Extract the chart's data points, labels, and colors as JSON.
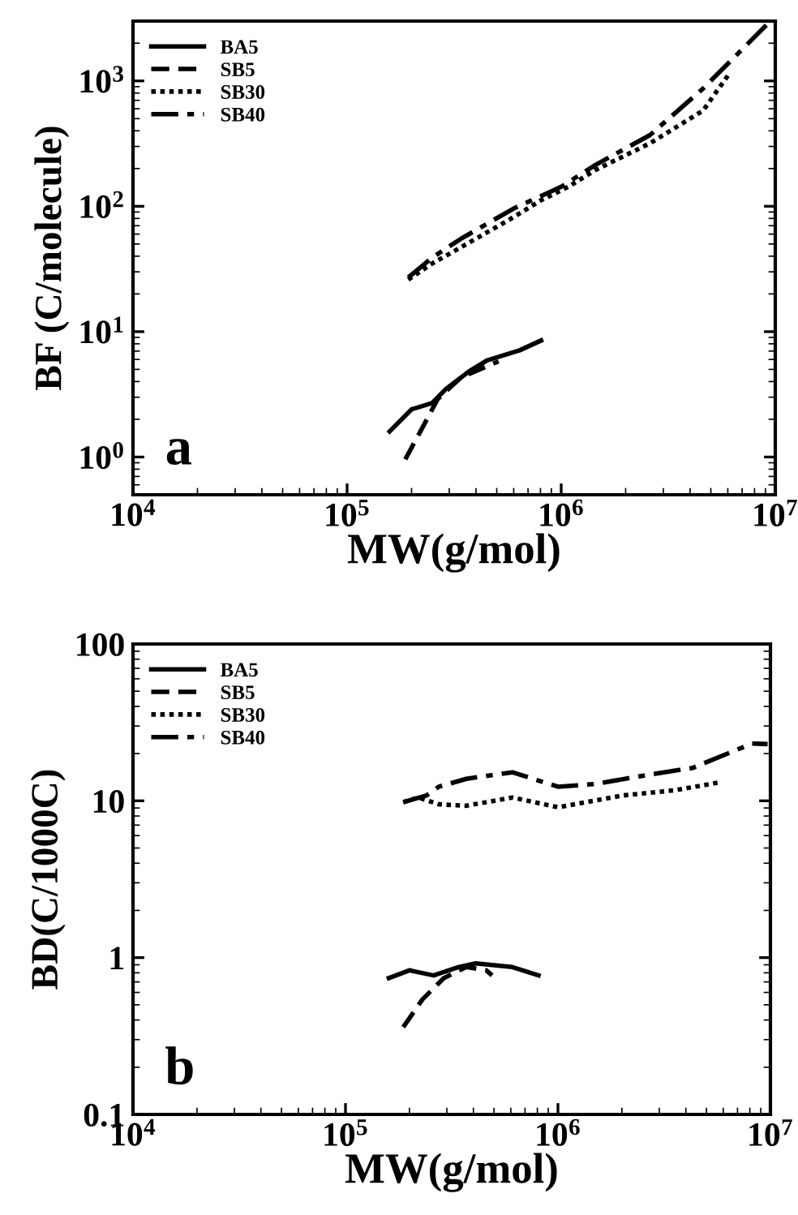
{
  "chart_data": [
    {
      "type": "line",
      "xlabel": "MW(g/mol)",
      "ylabel": "BF (C/molecule)",
      "log": "xy",
      "legend": "top left",
      "annotations": [
        "a"
      ],
      "xlim": [
        10000,
        10000000
      ],
      "xticks": [
        {
          "value": 10000,
          "label": "10$^{4}$"
        },
        {
          "value": 100000,
          "label": "10$^{5}$"
        },
        {
          "value": 1000000,
          "label": "10$^{6}$"
        },
        {
          "value": 10000000,
          "label": "10$^{7}$"
        }
      ],
      "ylim": [
        0.5,
        3000
      ],
      "yticks": [
        {
          "value": 1,
          "label": "10$^{0}$"
        },
        {
          "value": 10,
          "label": "10$^{1}$"
        },
        {
          "value": 100,
          "label": "10$^{2}$"
        },
        {
          "value": 1000,
          "label": "10$^{3}$"
        }
      ],
      "series": [
        {
          "name": "BA5",
          "color": "#000000",
          "line_style": "solid",
          "x": [
            158000,
            200000,
            250000,
            290000,
            370000,
            450000,
            640000,
            806000
          ],
          "values": [
            1.6,
            2.4,
            2.7,
            3.5,
            4.8,
            5.9,
            7.1,
            8.5
          ]
        },
        {
          "name": "SB5",
          "color": "#000000",
          "line_style": "dashed",
          "x": [
            187000,
            220000,
            265000,
            340000,
            450000,
            510000
          ],
          "values": [
            0.96,
            1.6,
            2.9,
            4.3,
            5.3,
            5.8
          ]
        },
        {
          "name": "SB30",
          "color": "#000000",
          "line_style": "dotted",
          "x": [
            193000,
            250000,
            340000,
            600000,
            800000,
            1080000,
            1440000,
            2600000,
            4600000,
            6000000
          ],
          "values": [
            26,
            35,
            47,
            82,
            111,
            143,
            194,
            318,
            580,
            1100
          ]
        },
        {
          "name": "SB40",
          "color": "#000000",
          "line_style": "dashdot",
          "x": [
            193000,
            250000,
            340000,
            600000,
            1000000,
            1440000,
            2600000,
            4600000,
            9300000
          ],
          "values": [
            27,
            39,
            55,
            96,
            143,
            213,
            370,
            870,
            2900
          ]
        }
      ]
    },
    {
      "type": "line",
      "xlabel": "MW(g/mol)",
      "ylabel": "BD(C/1000C)",
      "log": "xy",
      "legend": "top left",
      "annotations": [
        "b"
      ],
      "xlim": [
        10000,
        10000000
      ],
      "xticks": [
        {
          "value": 10000,
          "label": "10$^{4}$"
        },
        {
          "value": 100000,
          "label": "10$^{5}$"
        },
        {
          "value": 1000000,
          "label": "10$^{6}$"
        },
        {
          "value": 10000000,
          "label": "10$^{7}$"
        }
      ],
      "ylim": [
        0.1,
        100
      ],
      "yticks": [
        0.1,
        1,
        10,
        100
      ],
      "series": [
        {
          "name": "BA5",
          "color": "#000000",
          "line_style": "solid",
          "x": [
            160000,
            200000,
            260000,
            340000,
            410000,
            610000,
            810000
          ],
          "values": [
            0.74,
            0.83,
            0.77,
            0.87,
            0.92,
            0.87,
            0.77
          ]
        },
        {
          "name": "SB5",
          "color": "#000000",
          "line_style": "dashed",
          "x": [
            187000,
            230000,
            290000,
            370000,
            460000,
            490000
          ],
          "values": [
            0.36,
            0.54,
            0.74,
            0.87,
            0.83,
            0.77
          ]
        },
        {
          "name": "SB30",
          "color": "#000000",
          "line_style": "dotted",
          "x": [
            187000,
            220000,
            275000,
            370000,
            610000,
            1000000,
            2000000,
            3600000,
            5900000
          ],
          "values": [
            9.8,
            10.5,
            9.5,
            9.3,
            10.5,
            9.1,
            10.8,
            11.7,
            13.2
          ]
        },
        {
          "name": "SB40",
          "color": "#000000",
          "line_style": "dashdot",
          "x": [
            187000,
            240000,
            275000,
            370000,
            610000,
            1000000,
            1500000,
            2700000,
            4300000,
            8200000,
            9700000
          ],
          "values": [
            9.8,
            10.8,
            12.3,
            13.8,
            15.2,
            12.3,
            12.8,
            14.7,
            16.2,
            23.2,
            23
          ]
        }
      ]
    }
  ]
}
